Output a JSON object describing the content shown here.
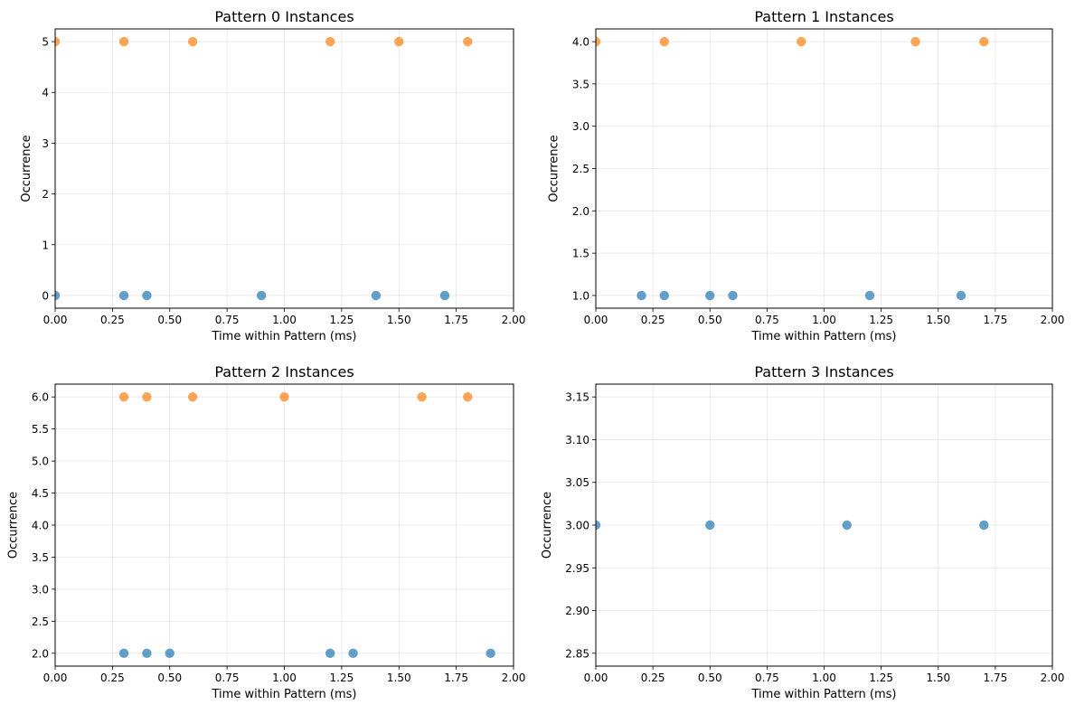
{
  "chart_data": [
    {
      "type": "scatter",
      "title": "Pattern 0 Instances",
      "xlabel": "Time within Pattern (ms)",
      "ylabel": "Occurrence",
      "xlim": [
        0,
        2
      ],
      "ylim": [
        -0.25,
        5.25
      ],
      "xticks": [
        "0.00",
        "0.25",
        "0.50",
        "0.75",
        "1.00",
        "1.25",
        "1.50",
        "1.75",
        "2.00"
      ],
      "yticks": [
        "0",
        "1",
        "2",
        "3",
        "4",
        "5"
      ],
      "grid": true,
      "series": [
        {
          "color": "#1f77b4",
          "points": [
            [
              0.0,
              0
            ],
            [
              0.3,
              0
            ],
            [
              0.4,
              0
            ],
            [
              0.9,
              0
            ],
            [
              1.4,
              0
            ],
            [
              1.7,
              0
            ]
          ]
        },
        {
          "color": "#ff7f0e",
          "points": [
            [
              0.0,
              5
            ],
            [
              0.3,
              5
            ],
            [
              0.6,
              5
            ],
            [
              1.2,
              5
            ],
            [
              1.5,
              5
            ],
            [
              1.8,
              5
            ]
          ]
        }
      ]
    },
    {
      "type": "scatter",
      "title": "Pattern 1 Instances",
      "xlabel": "Time within Pattern (ms)",
      "ylabel": "Occurrence",
      "xlim": [
        0,
        2
      ],
      "ylim": [
        0.85,
        4.15
      ],
      "xticks": [
        "0.00",
        "0.25",
        "0.50",
        "0.75",
        "1.00",
        "1.25",
        "1.50",
        "1.75",
        "2.00"
      ],
      "yticks": [
        "1.0",
        "1.5",
        "2.0",
        "2.5",
        "3.0",
        "3.5",
        "4.0"
      ],
      "grid": true,
      "series": [
        {
          "color": "#1f77b4",
          "points": [
            [
              0.2,
              1
            ],
            [
              0.3,
              1
            ],
            [
              0.5,
              1
            ],
            [
              0.6,
              1
            ],
            [
              1.2,
              1
            ],
            [
              1.6,
              1
            ]
          ]
        },
        {
          "color": "#ff7f0e",
          "points": [
            [
              0.0,
              4
            ],
            [
              0.3,
              4
            ],
            [
              0.9,
              4
            ],
            [
              1.4,
              4
            ],
            [
              1.7,
              4
            ]
          ]
        }
      ]
    },
    {
      "type": "scatter",
      "title": "Pattern 2 Instances",
      "xlabel": "Time within Pattern (ms)",
      "ylabel": "Occurrence",
      "xlim": [
        0,
        2
      ],
      "ylim": [
        1.8,
        6.2
      ],
      "xticks": [
        "0.00",
        "0.25",
        "0.50",
        "0.75",
        "1.00",
        "1.25",
        "1.50",
        "1.75",
        "2.00"
      ],
      "yticks": [
        "2.0",
        "2.5",
        "3.0",
        "3.5",
        "4.0",
        "4.5",
        "5.0",
        "5.5",
        "6.0"
      ],
      "grid": true,
      "series": [
        {
          "color": "#1f77b4",
          "points": [
            [
              0.3,
              2
            ],
            [
              0.4,
              2
            ],
            [
              0.5,
              2
            ],
            [
              1.2,
              2
            ],
            [
              1.3,
              2
            ],
            [
              1.9,
              2
            ]
          ]
        },
        {
          "color": "#ff7f0e",
          "points": [
            [
              0.3,
              6
            ],
            [
              0.4,
              6
            ],
            [
              0.6,
              6
            ],
            [
              1.0,
              6
            ],
            [
              1.6,
              6
            ],
            [
              1.8,
              6
            ]
          ]
        }
      ]
    },
    {
      "type": "scatter",
      "title": "Pattern 3 Instances",
      "xlabel": "Time within Pattern (ms)",
      "ylabel": "Occurrence",
      "xlim": [
        0,
        2
      ],
      "ylim": [
        2.835,
        3.165
      ],
      "xticks": [
        "0.00",
        "0.25",
        "0.50",
        "0.75",
        "1.00",
        "1.25",
        "1.50",
        "1.75",
        "2.00"
      ],
      "yticks": [
        "2.85",
        "2.90",
        "2.95",
        "3.00",
        "3.05",
        "3.10",
        "3.15"
      ],
      "grid": true,
      "series": [
        {
          "color": "#1f77b4",
          "points": [
            [
              0.0,
              3
            ],
            [
              0.5,
              3
            ],
            [
              1.1,
              3
            ],
            [
              1.7,
              3
            ]
          ]
        }
      ]
    }
  ]
}
